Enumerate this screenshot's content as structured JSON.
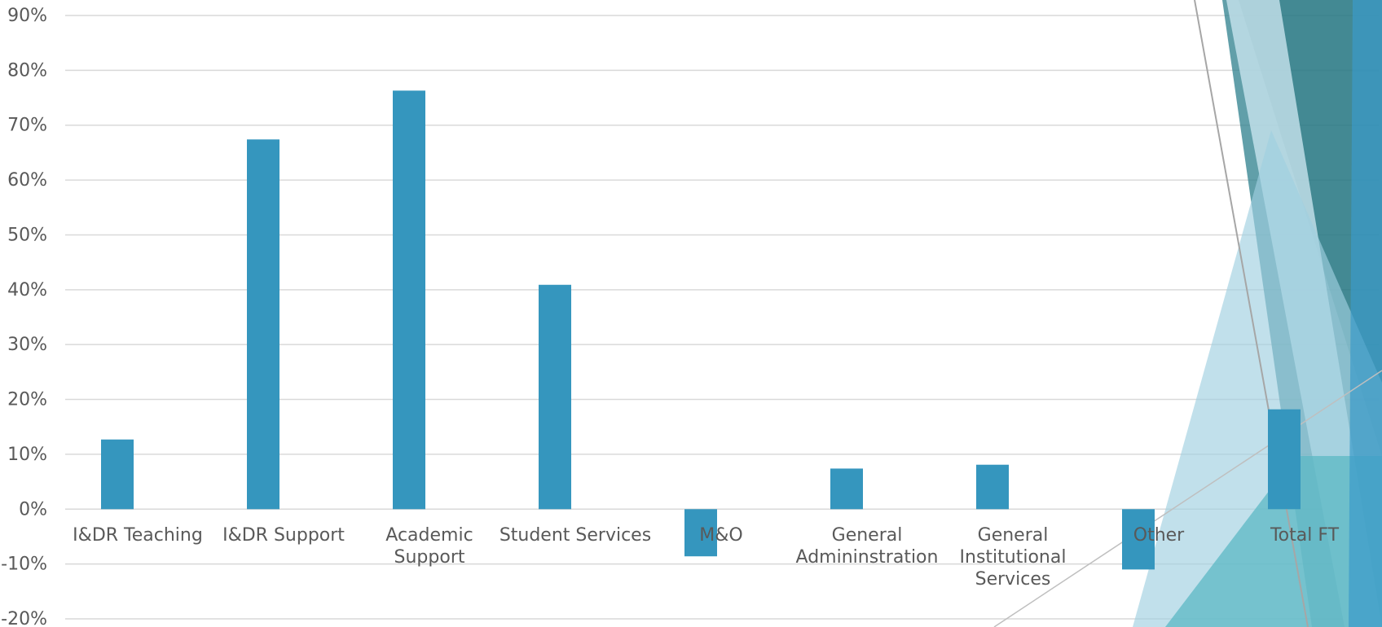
{
  "chart_data": {
    "type": "bar",
    "title": "",
    "xlabel": "",
    "ylabel": "",
    "ylim": [
      -20,
      90
    ],
    "y_ticks": [
      -20,
      -10,
      0,
      10,
      20,
      30,
      40,
      50,
      60,
      70,
      80,
      90
    ],
    "y_tick_labels": [
      "-20%",
      "-10%",
      "0%",
      "10%",
      "20%",
      "30%",
      "40%",
      "50%",
      "60%",
      "70%",
      "80%",
      "90%"
    ],
    "grid": true,
    "legend": "none",
    "bar_color": "#3596BE",
    "categories": [
      "I&DR Teaching",
      "I&DR Support",
      "Academic Support",
      "Student Services",
      "M&O",
      "General Admininstration",
      "General Institutional Services",
      "Other",
      "Total FT"
    ],
    "category_label_lines": [
      [
        "I&DR Teaching"
      ],
      [
        "I&DR Support"
      ],
      [
        "Academic",
        "Support"
      ],
      [
        "Student Services"
      ],
      [
        "M&O"
      ],
      [
        "General",
        "Admininstration"
      ],
      [
        "General",
        "Institutional",
        "Services"
      ],
      [
        "Other"
      ],
      [
        "Total FT"
      ]
    ],
    "values": [
      12.7,
      67.4,
      76.3,
      40.9,
      -8.6,
      7.4,
      8.1,
      -11.0,
      18.2
    ]
  },
  "theme": {
    "text_color": "#595959",
    "grid_color": "#D9D9D9",
    "decor_colors": [
      "#1F6E78",
      "#2C7F8C",
      "#9FCFE0",
      "#C8E3ED",
      "#5BB8C4",
      "#3A9AC9"
    ]
  }
}
